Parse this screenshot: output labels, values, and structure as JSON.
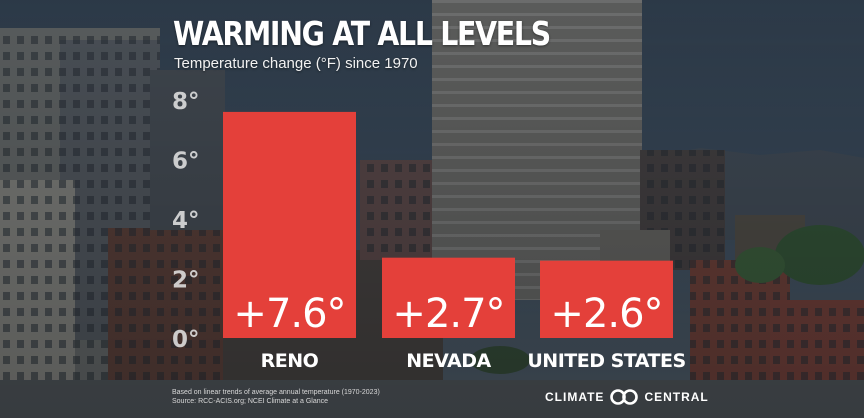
{
  "header": {
    "title": "WARMING AT ALL LEVELS",
    "subtitle": "Temperature change (°F) since 1970"
  },
  "chart_data": {
    "type": "bar",
    "title": "WARMING AT ALL LEVELS",
    "subtitle": "Temperature change (°F) since 1970",
    "categories": [
      "RENO",
      "NEVADA",
      "UNITED STATES"
    ],
    "values": [
      7.6,
      2.7,
      2.6
    ],
    "data_labels": [
      "+7.6°",
      "+2.7°",
      "+2.6°"
    ],
    "yticks": [
      0,
      2,
      4,
      6,
      8
    ],
    "ytick_labels": [
      "0°",
      "2°",
      "4°",
      "6°",
      "8°"
    ],
    "ylim": [
      0,
      8
    ],
    "grid": false,
    "bar_color": "#e4403a"
  },
  "footer": {
    "source_lines": [
      "Based on linear trends of average annual temperature (1970-2023)",
      "Source: RCC-ACIS.org; NCEI Climate at a Glance"
    ],
    "brand_left": "CLIMATE",
    "brand_right": "CENTRAL",
    "brand_icon": "climate-central-logo-icon"
  },
  "colors": {
    "bar": "#e4403a",
    "text": "#ffffff"
  }
}
